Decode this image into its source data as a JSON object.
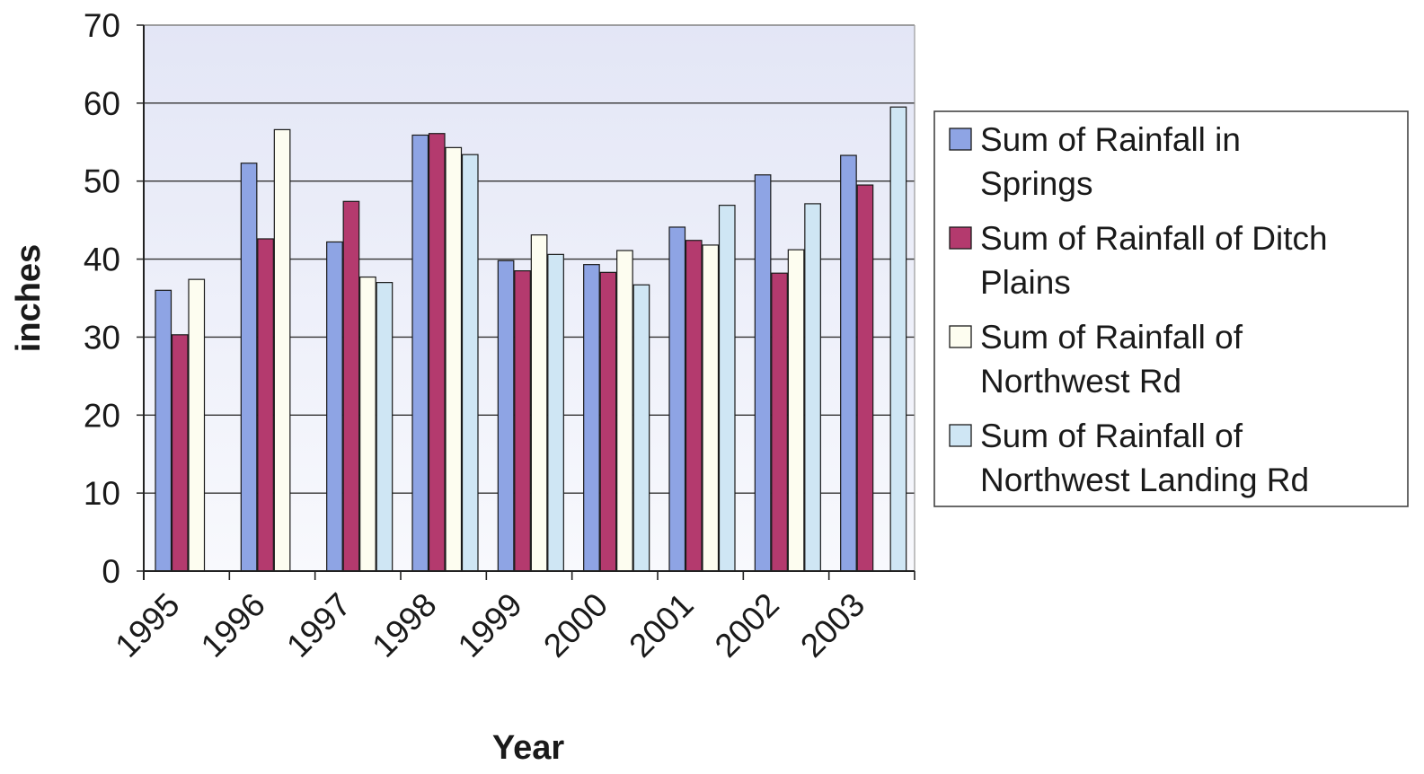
{
  "chart_data": {
    "type": "bar",
    "title": "",
    "xlabel": "Year",
    "ylabel": "inches",
    "ylim": [
      0,
      70
    ],
    "yticks": [
      "0",
      "10",
      "20",
      "30",
      "40",
      "50",
      "60",
      "70"
    ],
    "grid": true,
    "legend_position": "right",
    "categories": [
      "1995",
      "1996",
      "1997",
      "1998",
      "1999",
      "2000",
      "2001",
      "2002",
      "2003"
    ],
    "series": [
      {
        "name": "Sum of Rainfall in Springs",
        "legend_lines": [
          "Sum of Rainfall in",
          "Springs"
        ],
        "color": "#8EA4E4",
        "values": [
          36,
          52.3,
          42.2,
          55.9,
          39.8,
          39.3,
          44.1,
          50.8,
          53.3
        ]
      },
      {
        "name": "Sum of Rainfall of Ditch Plains",
        "legend_lines": [
          "Sum of Rainfall of Ditch",
          "Plains"
        ],
        "color": "#B43A6E",
        "values": [
          30.3,
          42.6,
          47.4,
          56.1,
          38.5,
          38.3,
          42.4,
          38.2,
          49.5
        ]
      },
      {
        "name": "Sum of Rainfall of Northwest Rd",
        "legend_lines": [
          "Sum of Rainfall of",
          "Northwest Rd"
        ],
        "color": "#FDFDF0",
        "values": [
          37.4,
          56.6,
          37.7,
          54.3,
          43.1,
          41.1,
          41.8,
          41.2,
          null
        ]
      },
      {
        "name": "Sum of Rainfall of Northwest Landing Rd",
        "legend_lines": [
          "Sum of Rainfall of",
          "Northwest Landing Rd"
        ],
        "color": "#CFE6F4",
        "values": [
          null,
          null,
          37,
          53.4,
          40.6,
          36.7,
          46.9,
          47.1,
          59.5
        ]
      }
    ]
  }
}
